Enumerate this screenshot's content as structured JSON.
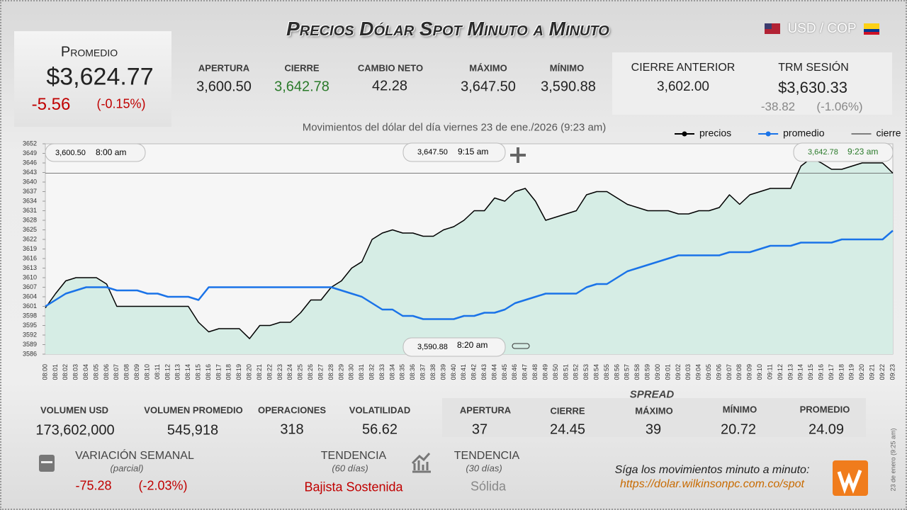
{
  "header": {
    "title": "Precios Dólar Spot Minuto a Minuto",
    "pair": "USD / COP"
  },
  "promedio": {
    "label": "Promedio",
    "value": "$3,624.77",
    "change": "-5.56",
    "change_pct": "(-0.15%)"
  },
  "stats": [
    {
      "label": "APERTURA",
      "value": "3,600.50"
    },
    {
      "label": "CIERRE",
      "value": "3,642.78"
    },
    {
      "label": "CAMBIO NETO",
      "value": "42.28"
    },
    {
      "label": "MÁXIMO",
      "value": "3,647.50"
    },
    {
      "label": "MÍNIMO",
      "value": "3,590.88"
    }
  ],
  "prev_close": {
    "label": "CIERRE ANTERIOR",
    "value": "3,602.00"
  },
  "trm": {
    "label": "TRM SESIÓN",
    "value": "$3,630.33",
    "change": "-38.82",
    "change_pct": "(-1.06%)"
  },
  "chart_data": {
    "type": "line",
    "title": "Movimientos del dólar del día viernes 23 de ene./2026 (9:23 am)",
    "categories": [
      "08:00",
      "08:01",
      "08:02",
      "08:03",
      "08:04",
      "08:05",
      "08:06",
      "08:07",
      "08:08",
      "08:09",
      "08:10",
      "08:11",
      "08:12",
      "08:13",
      "08:14",
      "08:15",
      "08:16",
      "08:17",
      "08:18",
      "08:19",
      "08:20",
      "08:21",
      "08:22",
      "08:23",
      "08:24",
      "08:25",
      "08:26",
      "08:27",
      "08:28",
      "08:29",
      "08:30",
      "08:31",
      "08:32",
      "08:33",
      "08:34",
      "08:35",
      "08:36",
      "08:37",
      "08:38",
      "08:39",
      "08:40",
      "08:41",
      "08:42",
      "08:43",
      "08:44",
      "08:45",
      "08:46",
      "08:47",
      "08:48",
      "08:49",
      "08:50",
      "08:51",
      "08:52",
      "08:53",
      "08:54",
      "08:55",
      "08:56",
      "08:57",
      "08:58",
      "08:59",
      "09:00",
      "09:01",
      "09:02",
      "09:03",
      "09:04",
      "09:05",
      "09:06",
      "09:07",
      "09:08",
      "09:09",
      "09:10",
      "09:11",
      "09:12",
      "09:13",
      "09:14",
      "09:15",
      "09:16",
      "09:17",
      "09:18",
      "09:19",
      "09:20",
      "09:21",
      "09:22",
      "09:23"
    ],
    "series": [
      {
        "name": "precios",
        "color": "#000000",
        "values": [
          3600.5,
          3605,
          3609,
          3610,
          3610,
          3610,
          3608,
          3601,
          3601,
          3601,
          3601,
          3601,
          3601,
          3601,
          3601,
          3596,
          3593,
          3594,
          3594,
          3594,
          3590.88,
          3595,
          3595,
          3596,
          3596,
          3599,
          3603,
          3603,
          3607,
          3609,
          3613,
          3615,
          3622,
          3624,
          3625,
          3624,
          3624,
          3623,
          3623,
          3625,
          3626,
          3628,
          3631,
          3631,
          3635,
          3634,
          3637,
          3638,
          3634,
          3628,
          3629,
          3630,
          3631,
          3636,
          3637,
          3637,
          3635,
          3633,
          3632,
          3631,
          3631,
          3631,
          3630,
          3630,
          3631,
          3631,
          3632,
          3636,
          3633,
          3636,
          3637,
          3638,
          3638,
          3638,
          3645,
          3647.5,
          3646,
          3644,
          3644,
          3645,
          3646,
          3646,
          3646,
          3642.78
        ]
      },
      {
        "name": "promedio",
        "color": "#1a73e8",
        "values": [
          3601,
          3603,
          3605,
          3606,
          3607,
          3607,
          3607,
          3606,
          3606,
          3606,
          3605,
          3605,
          3604,
          3604,
          3604,
          3603,
          3607,
          3607,
          3607,
          3607,
          3607,
          3607,
          3607,
          3607,
          3607,
          3607,
          3607,
          3607,
          3607,
          3606,
          3605,
          3604,
          3602,
          3600,
          3600,
          3598,
          3598,
          3597,
          3597,
          3597,
          3597,
          3598,
          3598,
          3599,
          3599,
          3600,
          3602,
          3603,
          3604,
          3605,
          3605,
          3605,
          3605,
          3607,
          3608,
          3608,
          3610,
          3612,
          3613,
          3614,
          3615,
          3616,
          3617,
          3617,
          3617,
          3617,
          3617,
          3618,
          3618,
          3618,
          3619,
          3620,
          3620,
          3620,
          3621,
          3621,
          3621,
          3621,
          3622,
          3622,
          3622,
          3622,
          3622,
          3624.77
        ]
      }
    ],
    "reference_lines": [
      {
        "name": "cierre",
        "value": 3642.78,
        "color": "#555555"
      }
    ],
    "area_fill": "#d6ede5",
    "ylim": [
      3586,
      3652
    ],
    "yticks": [
      3586,
      3589,
      3592,
      3595,
      3598,
      3601,
      3604,
      3607,
      3610,
      3613,
      3616,
      3619,
      3622,
      3625,
      3628,
      3631,
      3634,
      3637,
      3640,
      3643,
      3646,
      3649,
      3652
    ],
    "grid": false,
    "legend": "top-right",
    "annotations": [
      {
        "value": "3,600.50",
        "time": "8:00 am"
      },
      {
        "value": "3,647.50",
        "time": "9:15 am"
      },
      {
        "value": "3,642.78",
        "time": "9:23 am"
      },
      {
        "value": "3,590.88",
        "time": "8:20 am"
      }
    ]
  },
  "volume_stats": [
    {
      "label": "VOLUMEN USD",
      "value": "173,602,000"
    },
    {
      "label": "VOLUMEN PROMEDIO",
      "value": "545,918"
    },
    {
      "label": "OPERACIONES",
      "value": "318"
    },
    {
      "label": "VOLATILIDAD",
      "value": "56.62"
    }
  ],
  "spread": {
    "title": "SPREAD",
    "items": [
      {
        "label": "APERTURA",
        "value": "37"
      },
      {
        "label": "CIERRE",
        "value": "24.45"
      },
      {
        "label": "MÁXIMO",
        "value": "39"
      },
      {
        "label": "MÍNIMO",
        "value": "20.72"
      },
      {
        "label": "PROMEDIO",
        "value": "24.09"
      }
    ]
  },
  "weekly": {
    "label": "VARIACIÓN SEMANAL",
    "note": "(parcial)",
    "change": "-75.28",
    "change_pct": "(-2.03%)"
  },
  "trends": [
    {
      "label": "TENDENCIA",
      "note": "(60 días)",
      "value": "Bajista Sostenida"
    },
    {
      "label": "TENDENCIA",
      "note": "(30 días)",
      "value": "Sólida"
    }
  ],
  "footer": {
    "cta": "Síga los movimientos minuto a minuto:",
    "url": "https://dolar.wilkinsonpc.com.co/spot",
    "timestamp": "23 de enero (9:25 am)"
  }
}
